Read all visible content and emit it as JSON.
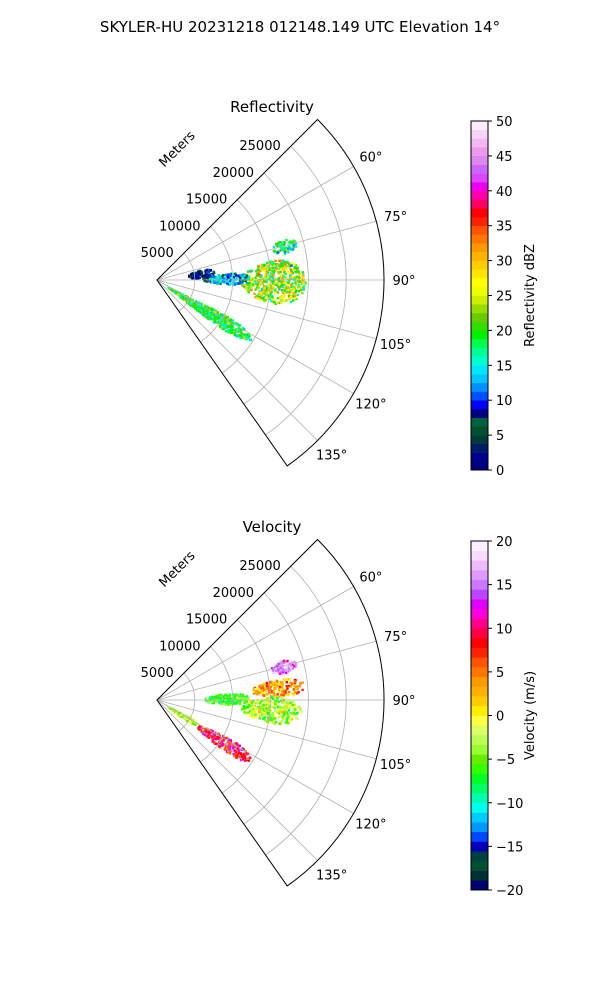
{
  "figure_title": "SKYLER-HU  20231218  012148.149 UTC Elevation 14°",
  "chart_data": [
    {
      "type": "heatmap",
      "projection": "polar-sector",
      "title": "Reflectivity",
      "range_label": "Meters",
      "range_ticks": [
        5000,
        10000,
        15000,
        20000,
        25000
      ],
      "range_max": 30000,
      "azimuth_range": [
        45,
        145
      ],
      "azimuth_ticks": [
        "60°",
        "75°",
        "90°",
        "105°",
        "120°",
        "135°"
      ],
      "colorbar": {
        "label": "Reflectivity dBZ",
        "min": 0,
        "max": 50,
        "ticks": [
          "0",
          "5",
          "10",
          "15",
          "20",
          "25",
          "30",
          "35",
          "40",
          "45",
          "50"
        ]
      },
      "echoes": [
        {
          "name": "cell-north",
          "az_range": [
            72,
            78
          ],
          "range_m": [
            15500,
            19000
          ],
          "value_mean": 17,
          "value_spread": 5
        },
        {
          "name": "main-cell",
          "az_range": [
            80,
            101
          ],
          "range_m": [
            11000,
            19500
          ],
          "value_mean": 23,
          "value_spread": 8
        },
        {
          "name": "near-band",
          "az_range": [
            84,
            93
          ],
          "range_m": [
            6000,
            12000
          ],
          "value_mean": 12,
          "value_spread": 5
        },
        {
          "name": "near-speckle",
          "az_range": [
            76,
            87
          ],
          "range_m": [
            4000,
            7500
          ],
          "value_mean": 5,
          "value_spread": 5
        },
        {
          "name": "clutter-strip",
          "az_range": [
            117,
            127
          ],
          "range_m": [
            1500,
            14500
          ],
          "value_mean": 19,
          "value_spread": 4
        }
      ]
    },
    {
      "type": "heatmap",
      "projection": "polar-sector",
      "title": "Velocity",
      "range_label": "Meters",
      "range_ticks": [
        5000,
        10000,
        15000,
        20000,
        25000
      ],
      "range_max": 30000,
      "azimuth_range": [
        45,
        145
      ],
      "azimuth_ticks": [
        "60°",
        "75°",
        "90°",
        "105°",
        "120°",
        "135°"
      ],
      "colorbar": {
        "label": "Velocity (m/s)",
        "min": -20,
        "max": 20,
        "ticks": [
          "−20",
          "−15",
          "−10",
          "−5",
          "0",
          "5",
          "10",
          "15",
          "20"
        ]
      },
      "echoes": [
        {
          "name": "cell-north",
          "az_range": [
            72,
            78
          ],
          "range_m": [
            15500,
            19000
          ],
          "value_mean": 15,
          "value_spread": 3
        },
        {
          "name": "main-cell-upper",
          "az_range": [
            80,
            88
          ],
          "range_m": [
            12500,
            19500
          ],
          "value_mean": 4,
          "value_spread": 4
        },
        {
          "name": "main-cell-lower",
          "az_range": [
            88,
            101
          ],
          "range_m": [
            11000,
            19000
          ],
          "value_mean": -3,
          "value_spread": 4
        },
        {
          "name": "near-band",
          "az_range": [
            84,
            93
          ],
          "range_m": [
            6000,
            12000
          ],
          "value_mean": -6,
          "value_spread": 3
        },
        {
          "name": "clutter-strip-near",
          "az_range": [
            117,
            125
          ],
          "range_m": [
            1500,
            6000
          ],
          "value_mean": -2,
          "value_spread": 3
        },
        {
          "name": "clutter-strip-far",
          "az_range": [
            118,
            127
          ],
          "range_m": [
            6000,
            14500
          ],
          "value_mean": 9,
          "value_spread": 5
        }
      ]
    }
  ]
}
